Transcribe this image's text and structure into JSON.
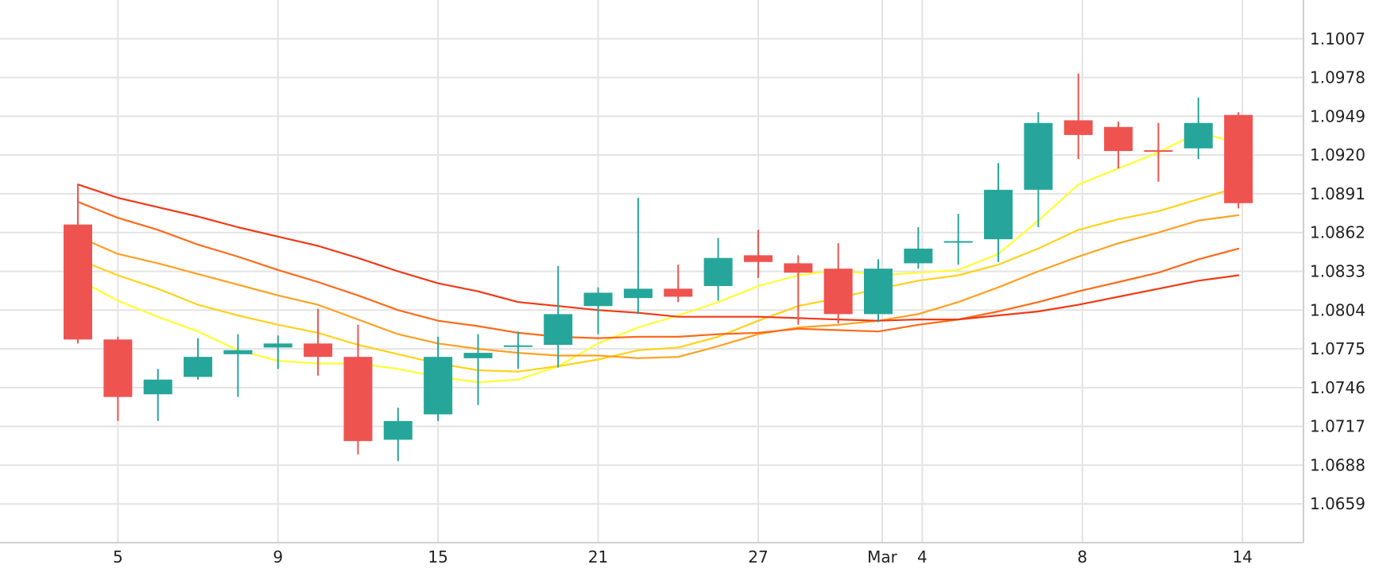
{
  "chart_data": {
    "type": "candlestick",
    "title": "",
    "xlabel": "",
    "ylabel": "",
    "ylim": [
      1.063,
      1.1036
    ],
    "y_ticks": [
      "1.1007",
      "1.0978",
      "1.0949",
      "1.0920",
      "1.0891",
      "1.0862",
      "1.0833",
      "1.0804",
      "1.0775",
      "1.0746",
      "1.0717",
      "1.0688",
      "1.0659"
    ],
    "x_ticks": [
      {
        "label": "5",
        "day": 1
      },
      {
        "label": "9",
        "day": 5
      },
      {
        "label": "15",
        "day": 9
      },
      {
        "label": "21",
        "day": 13
      },
      {
        "label": "27",
        "day": 17
      },
      {
        "label": "Mar",
        "day": 20.1
      },
      {
        "label": "4",
        "day": 21.1
      },
      {
        "label": "8",
        "day": 25.1
      },
      {
        "label": "14",
        "day": 29.1
      }
    ],
    "grid": true,
    "colors": {
      "up": "#26a69a",
      "down": "#ef5350",
      "grid": "#e3e3e3",
      "axis_text": "#222222"
    },
    "candles": [
      {
        "date": "Feb 3",
        "open": 1.0868,
        "high": 1.0898,
        "low": 1.0779,
        "close": 1.0782
      },
      {
        "date": "Feb 5",
        "open": 1.0782,
        "high": 1.0784,
        "low": 1.0721,
        "close": 1.0739
      },
      {
        "date": "Feb 6",
        "open": 1.0741,
        "high": 1.076,
        "low": 1.0721,
        "close": 1.0752
      },
      {
        "date": "Feb 7",
        "open": 1.0754,
        "high": 1.0783,
        "low": 1.0752,
        "close": 1.0769
      },
      {
        "date": "Feb 8",
        "open": 1.0771,
        "high": 1.0786,
        "low": 1.0739,
        "close": 1.0774
      },
      {
        "date": "Feb 9",
        "open": 1.0776,
        "high": 1.0785,
        "low": 1.076,
        "close": 1.0779
      },
      {
        "date": "Feb 12",
        "open": 1.0779,
        "high": 1.0805,
        "low": 1.0755,
        "close": 1.0769
      },
      {
        "date": "Feb 13",
        "open": 1.0769,
        "high": 1.0793,
        "low": 1.0696,
        "close": 1.0706
      },
      {
        "date": "Feb 14",
        "open": 1.0707,
        "high": 1.0731,
        "low": 1.0691,
        "close": 1.0721
      },
      {
        "date": "Feb 15",
        "open": 1.0726,
        "high": 1.0784,
        "low": 1.0721,
        "close": 1.0769
      },
      {
        "date": "Feb 16",
        "open": 1.0768,
        "high": 1.0786,
        "low": 1.0733,
        "close": 1.0772
      },
      {
        "date": "Feb 19",
        "open": 1.0776,
        "high": 1.0788,
        "low": 1.076,
        "close": 1.0777
      },
      {
        "date": "Feb 20",
        "open": 1.0778,
        "high": 1.0837,
        "low": 1.0761,
        "close": 1.0801
      },
      {
        "date": "Feb 21",
        "open": 1.0807,
        "high": 1.0821,
        "low": 1.0786,
        "close": 1.0817
      },
      {
        "date": "Feb 22",
        "open": 1.0813,
        "high": 1.0888,
        "low": 1.0801,
        "close": 1.082
      },
      {
        "date": "Feb 23",
        "open": 1.082,
        "high": 1.0838,
        "low": 1.081,
        "close": 1.0814
      },
      {
        "date": "Feb 26",
        "open": 1.0822,
        "high": 1.0858,
        "low": 1.0811,
        "close": 1.0843
      },
      {
        "date": "Feb 27",
        "open": 1.0845,
        "high": 1.0864,
        "low": 1.0828,
        "close": 1.084
      },
      {
        "date": "Feb 28",
        "open": 1.0839,
        "high": 1.0845,
        "low": 1.0793,
        "close": 1.0832
      },
      {
        "date": "Feb 29",
        "open": 1.0835,
        "high": 1.0854,
        "low": 1.0794,
        "close": 1.0801
      },
      {
        "date": "Mar 1",
        "open": 1.0801,
        "high": 1.0842,
        "low": 1.0795,
        "close": 1.0835
      },
      {
        "date": "Mar 4",
        "open": 1.0839,
        "high": 1.0866,
        "low": 1.0835,
        "close": 1.085
      },
      {
        "date": "Mar 5",
        "open": 1.0855,
        "high": 1.0876,
        "low": 1.0838,
        "close": 1.0855
      },
      {
        "date": "Mar 6",
        "open": 1.0857,
        "high": 1.0914,
        "low": 1.084,
        "close": 1.0894
      },
      {
        "date": "Mar 7",
        "open": 1.0894,
        "high": 1.0952,
        "low": 1.0866,
        "close": 1.0944
      },
      {
        "date": "Mar 8",
        "open": 1.0946,
        "high": 1.0981,
        "low": 1.0917,
        "close": 1.0935
      },
      {
        "date": "Mar 11",
        "open": 1.0941,
        "high": 1.0945,
        "low": 1.091,
        "close": 1.0923
      },
      {
        "date": "Mar 12",
        "open": 1.0923,
        "high": 1.0944,
        "low": 1.09,
        "close": 1.0922
      },
      {
        "date": "Mar 13",
        "open": 1.0925,
        "high": 1.0963,
        "low": 1.0917,
        "close": 1.0944
      },
      {
        "date": "Mar 14",
        "open": 1.095,
        "high": 1.0952,
        "low": 1.088,
        "close": 1.0884
      }
    ],
    "series": [
      {
        "type": "line",
        "color": "#ffff33",
        "values": [
          1.0827,
          1.0811,
          1.0799,
          1.0788,
          1.0774,
          1.0766,
          1.0764,
          1.0764,
          1.076,
          1.0754,
          1.075,
          1.0752,
          1.0762,
          1.0779,
          1.0791,
          1.08,
          1.081,
          1.0822,
          1.083,
          1.0834,
          1.083,
          1.0832,
          1.0834,
          1.0846,
          1.0871,
          1.0898,
          1.091,
          1.0922,
          1.0937,
          1.0929
        ]
      },
      {
        "type": "line",
        "color": "#ffd21a",
        "values": [
          1.0842,
          1.083,
          1.082,
          1.0808,
          1.08,
          1.0793,
          1.0787,
          1.0778,
          1.0771,
          1.0764,
          1.0759,
          1.0758,
          1.0762,
          1.0767,
          1.0774,
          1.0776,
          1.0784,
          1.0796,
          1.0807,
          1.0813,
          1.082,
          1.0826,
          1.083,
          1.0838,
          1.085,
          1.0864,
          1.0872,
          1.0878,
          1.0887,
          1.0896
        ]
      },
      {
        "type": "line",
        "color": "#ffa020",
        "values": [
          1.0859,
          1.0846,
          1.0839,
          1.0831,
          1.0823,
          1.0815,
          1.0808,
          1.0797,
          1.0786,
          1.0779,
          1.0775,
          1.0772,
          1.077,
          1.077,
          1.0768,
          1.0769,
          1.0777,
          1.0786,
          1.0791,
          1.0793,
          1.0796,
          1.0801,
          1.081,
          1.0821,
          1.0833,
          1.0844,
          1.0854,
          1.0862,
          1.0871,
          1.0875
        ]
      },
      {
        "type": "line",
        "color": "#ff6a1a",
        "values": [
          1.0885,
          1.0873,
          1.0864,
          1.0853,
          1.0844,
          1.0834,
          1.0825,
          1.0815,
          1.0804,
          1.0796,
          1.0792,
          1.0787,
          1.0784,
          1.0783,
          1.0784,
          1.0784,
          1.0786,
          1.0787,
          1.079,
          1.0789,
          1.0788,
          1.0793,
          1.0797,
          1.0803,
          1.081,
          1.0818,
          1.0825,
          1.0832,
          1.0842,
          1.085
        ]
      },
      {
        "type": "line",
        "color": "#f03a17",
        "values": [
          1.0898,
          1.0888,
          1.0881,
          1.0874,
          1.0866,
          1.0859,
          1.0852,
          1.0843,
          1.0833,
          1.0824,
          1.0818,
          1.081,
          1.0807,
          1.0804,
          1.0802,
          1.0799,
          1.0799,
          1.0799,
          1.0798,
          1.0797,
          1.0796,
          1.0797,
          1.0797,
          1.08,
          1.0803,
          1.0808,
          1.0814,
          1.082,
          1.0826,
          1.083
        ]
      }
    ]
  }
}
